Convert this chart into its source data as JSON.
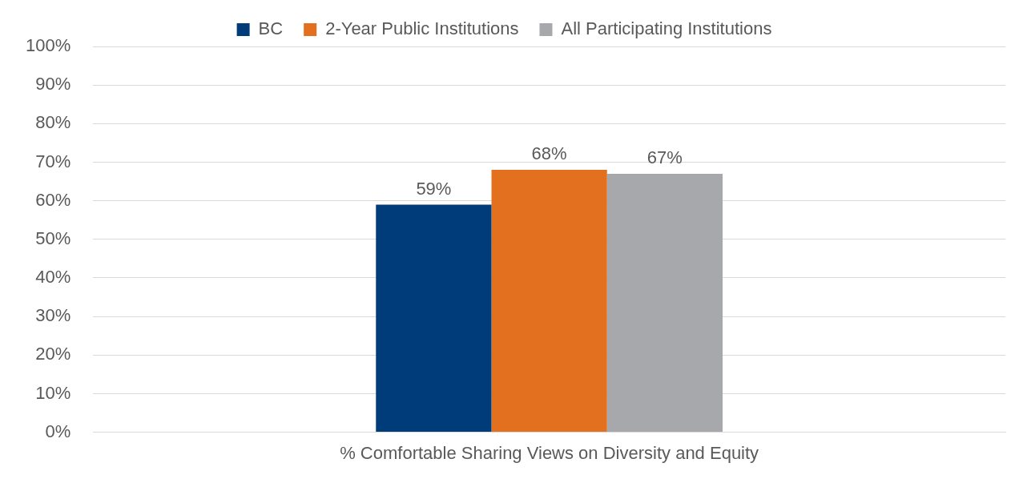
{
  "chart_data": {
    "type": "bar",
    "categories": [
      "% Comfortable Sharing Views on Diversity and Equity"
    ],
    "series": [
      {
        "name": "BC",
        "color": "#003b7a",
        "values": [
          59
        ],
        "value_labels": [
          "59%"
        ]
      },
      {
        "name": "2-Year Public Institutions",
        "color": "#e2701f",
        "values": [
          68
        ],
        "value_labels": [
          "68%"
        ]
      },
      {
        "name": "All Participating Institutions",
        "color": "#a7a8ab",
        "values": [
          67
        ],
        "value_labels": [
          "67%"
        ]
      }
    ],
    "ylim": [
      0,
      100
    ],
    "yticks": [
      {
        "value": 0,
        "label": "0%"
      },
      {
        "value": 10,
        "label": "10%"
      },
      {
        "value": 20,
        "label": "20%"
      },
      {
        "value": 30,
        "label": "30%"
      },
      {
        "value": 40,
        "label": "40%"
      },
      {
        "value": 50,
        "label": "50%"
      },
      {
        "value": 60,
        "label": "60%"
      },
      {
        "value": 70,
        "label": "70%"
      },
      {
        "value": 80,
        "label": "80%"
      },
      {
        "value": 90,
        "label": "90%"
      },
      {
        "value": 100,
        "label": "100%"
      }
    ],
    "grid": "y",
    "legend": "top"
  }
}
